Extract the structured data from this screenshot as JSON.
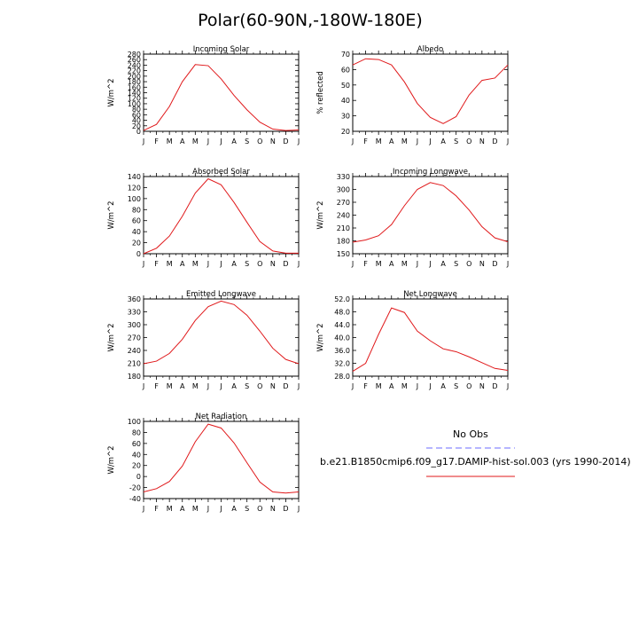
{
  "title": "Polar(60-90N,-180W-180E)",
  "months": [
    "J",
    "F",
    "M",
    "A",
    "M",
    "J",
    "J",
    "A",
    "S",
    "O",
    "N",
    "D",
    "J"
  ],
  "series_color": "#e0191b",
  "obs_color": "#6b6bff",
  "legend": {
    "obs_label": "No Obs",
    "model_label": "b.e21.B1850cmip6.f09_g17.DAMIP-hist-sol.003 (yrs 1990-2014)"
  },
  "chart_data": [
    {
      "type": "line",
      "title": "Incoming Solar",
      "ylabel": "W/m^2",
      "ylim": [
        0,
        280
      ],
      "yticks": [
        "0",
        "20",
        "40",
        "60",
        "80",
        "100",
        "120",
        "140",
        "160",
        "180",
        "200",
        "220",
        "240",
        "260",
        "280"
      ],
      "values": [
        3,
        25,
        90,
        180,
        242,
        238,
        190,
        130,
        78,
        33,
        8,
        3,
        5
      ]
    },
    {
      "type": "line",
      "title": "Albedo",
      "ylabel": "% reflected",
      "ylim": [
        20,
        70
      ],
      "yticks": [
        "20",
        "30",
        "40",
        "50",
        "60",
        "70"
      ],
      "values": [
        63,
        67,
        66.5,
        63,
        52,
        38,
        29,
        25,
        29.5,
        43.5,
        53,
        54.5,
        63
      ]
    },
    {
      "type": "line",
      "title": "Absorbed Solar",
      "ylabel": "W/m^2",
      "ylim": [
        0,
        140
      ],
      "yticks": [
        "0",
        "20",
        "40",
        "60",
        "80",
        "100",
        "120",
        "140"
      ],
      "values": [
        0,
        10,
        32,
        68,
        110,
        136,
        125,
        93,
        57,
        22,
        5,
        1,
        1
      ]
    },
    {
      "type": "line",
      "title": "Incoming Longwave",
      "ylabel": "W/m^2",
      "ylim": [
        150,
        330
      ],
      "yticks": [
        "150",
        "180",
        "210",
        "240",
        "270",
        "300",
        "330"
      ],
      "values": [
        177,
        182,
        192,
        218,
        262,
        300,
        316,
        309,
        285,
        252,
        213,
        187,
        178
      ]
    },
    {
      "type": "line",
      "title": "Emitted Longwave",
      "ylabel": "W/m^2",
      "ylim": [
        180,
        360
      ],
      "yticks": [
        "180",
        "210",
        "240",
        "270",
        "300",
        "330",
        "360"
      ],
      "values": [
        209,
        215,
        233,
        266,
        310,
        342,
        355,
        347,
        322,
        285,
        245,
        219,
        209
      ]
    },
    {
      "type": "line",
      "title": "Net Longwave",
      "ylabel": "W/m^2",
      "ylim": [
        28,
        52
      ],
      "yticks": [
        "28.0",
        "32.0",
        "36.0",
        "40.0",
        "44.0",
        "48.0",
        "52.0"
      ],
      "values": [
        29.5,
        32,
        41,
        49.2,
        47.8,
        42,
        39,
        36.5,
        35.6,
        34,
        32.2,
        30.4,
        29.8
      ]
    },
    {
      "type": "line",
      "title": "Net Radiation",
      "ylabel": "W/m^2",
      "ylim": [
        -40,
        100
      ],
      "yticks": [
        "-40",
        "-20",
        "0",
        "20",
        "40",
        "60",
        "80",
        "100"
      ],
      "values": [
        -28,
        -22,
        -9,
        19,
        63,
        95,
        88,
        61,
        25,
        -10,
        -28,
        -30,
        -28
      ]
    }
  ]
}
